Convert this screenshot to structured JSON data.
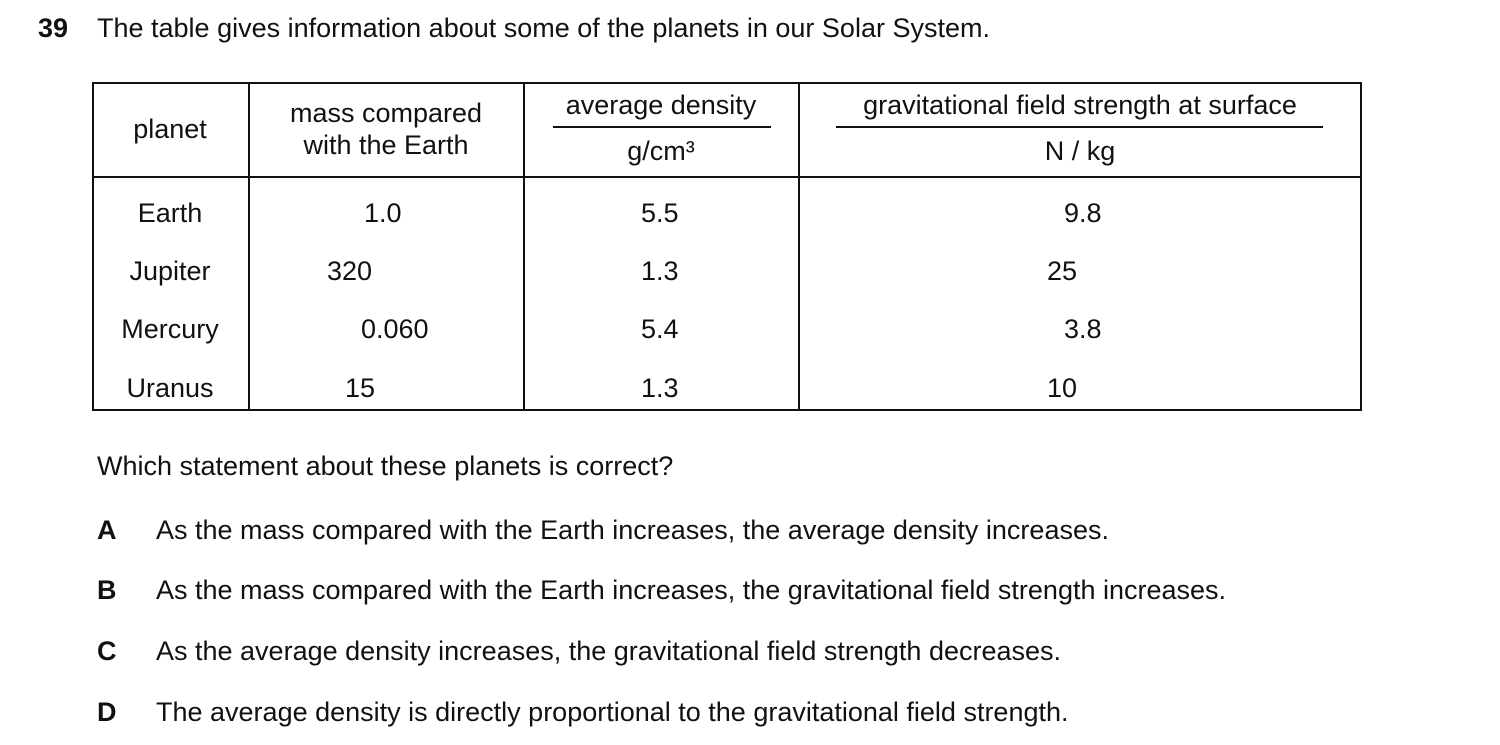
{
  "question": {
    "number": "39",
    "text": "The table gives information about some of the planets in our Solar System."
  },
  "table": {
    "headers": [
      {
        "quantity": "planet"
      },
      {
        "quantity": "mass compared with the Earth"
      },
      {
        "quantity": "average density",
        "unit": "g/cm³"
      },
      {
        "quantity": "gravitational field strength at surface",
        "unit": "N / kg"
      }
    ],
    "rows": [
      [
        "Earth",
        "1.0",
        "5.5",
        "9.8"
      ],
      [
        "Jupiter",
        "320",
        "1.3",
        "25"
      ],
      [
        "Mercury",
        "0.060",
        "5.4",
        "3.8"
      ],
      [
        "Uranus",
        "15",
        "1.3",
        "10"
      ]
    ]
  },
  "prompt": "Which statement about these planets is correct?",
  "options": [
    {
      "letter": "A",
      "text": "As the mass compared with the Earth increases, the average density increases."
    },
    {
      "letter": "B",
      "text": "As the mass compared with the Earth increases, the gravitational field strength increases."
    },
    {
      "letter": "C",
      "text": "As the average density increases, the gravitational field strength decreases."
    },
    {
      "letter": "D",
      "text": "The average density is directly proportional to the gravitational field strength."
    }
  ]
}
